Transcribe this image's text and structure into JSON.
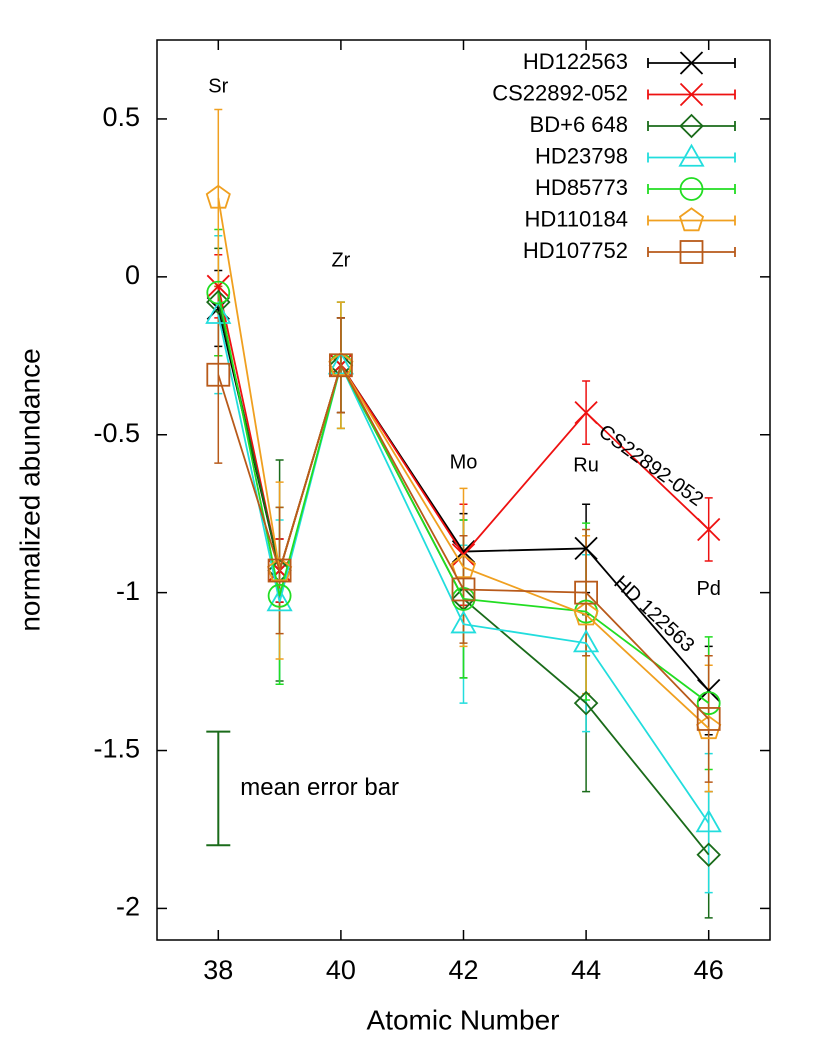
{
  "chart_data": {
    "type": "line",
    "xlabel": "Atomic Number",
    "ylabel": "normalized abundance",
    "x": [
      38,
      39,
      40,
      42,
      44,
      46
    ],
    "xlim": [
      37,
      47
    ],
    "xticks": [
      38,
      40,
      42,
      44,
      46
    ],
    "ylim": [
      -2.1,
      0.75
    ],
    "yticks": [
      0.5,
      0,
      -0.5,
      -1,
      -1.5,
      -2
    ],
    "legend": "top-right",
    "series": [
      {
        "name": "HD122563",
        "color": "#000000",
        "marker": "cross",
        "values": [
          -0.1,
          -0.93,
          -0.28,
          -0.87,
          -0.86,
          -1.31
        ],
        "errors": [
          0.12,
          0.1,
          0.15,
          0.12,
          0.14,
          0.14
        ]
      },
      {
        "name": "CS22892-052",
        "color": "#ee1111",
        "marker": "cross",
        "values": [
          -0.03,
          -0.93,
          -0.28,
          -0.88,
          -0.43,
          -0.8
        ],
        "errors": [
          0.1,
          0.1,
          0.15,
          0.16,
          0.1,
          0.1
        ]
      },
      {
        "name": "BD+6 648",
        "color": "#1a6b1a",
        "marker": "diamond",
        "values": [
          -0.08,
          -0.93,
          -0.28,
          -1.02,
          -1.35,
          -1.83
        ],
        "errors": [
          0.17,
          0.35,
          0.15,
          0.25,
          0.28,
          0.2
        ]
      },
      {
        "name": "HD23798",
        "color": "#22dddd",
        "marker": "triangle",
        "values": [
          -0.12,
          -1.03,
          -0.28,
          -1.1,
          -1.16,
          -1.73
        ],
        "errors": [
          0.25,
          0.26,
          0.2,
          0.25,
          0.28,
          0.22
        ]
      },
      {
        "name": "HD85773",
        "color": "#22dd22",
        "marker": "circle",
        "values": [
          -0.05,
          -1.01,
          -0.28,
          -1.02,
          -1.06,
          -1.35
        ],
        "errors": [
          0.2,
          0.28,
          0.2,
          0.25,
          0.28,
          0.21
        ]
      },
      {
        "name": "HD110184",
        "color": "#f0a020",
        "marker": "pentagon",
        "values": [
          0.25,
          -0.93,
          -0.28,
          -0.92,
          -1.07,
          -1.43
        ],
        "errors": [
          0.28,
          0.28,
          0.2,
          0.25,
          0.25,
          0.2
        ]
      },
      {
        "name": "HD107752",
        "color": "#b85a1a",
        "marker": "square",
        "values": [
          -0.31,
          -0.93,
          -0.28,
          -0.99,
          -1.0,
          -1.4
        ],
        "errors": [
          0.28,
          0.2,
          0.15,
          0.17,
          0.2,
          0.2
        ]
      }
    ],
    "annotations": [
      {
        "text": "Sr",
        "x": 38,
        "y": 0.6
      },
      {
        "text": "Zr",
        "x": 40,
        "y": 0.05
      },
      {
        "text": "Mo",
        "x": 42,
        "y": -0.59
      },
      {
        "text": "Ru",
        "x": 44,
        "y": -0.6
      },
      {
        "text": "Pd",
        "x": 46,
        "y": -0.99
      },
      {
        "text": "CS22892-052",
        "x": 45.05,
        "y": -0.6,
        "rotation": 36
      },
      {
        "text": "HD 122563",
        "x": 45.1,
        "y": -1.07,
        "rotation": 43
      }
    ],
    "mean_error_bar": {
      "label": "mean error bar",
      "x": 38,
      "y": -1.62,
      "error": 0.18,
      "color": "#1a6b1a"
    }
  }
}
